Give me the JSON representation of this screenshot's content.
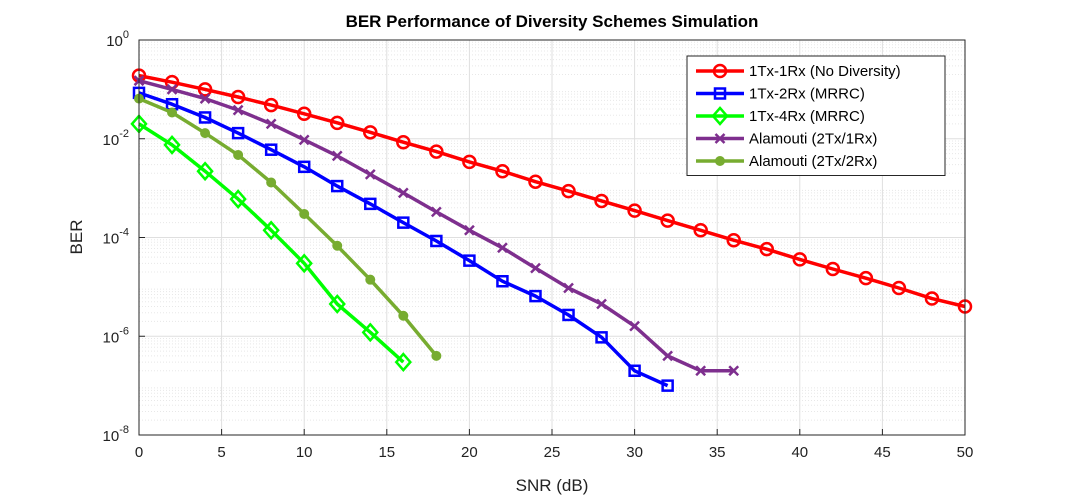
{
  "chart_data": {
    "type": "line",
    "title": "BER Performance of Diversity Schemes Simulation",
    "xlabel": "SNR (dB)",
    "ylabel": "BER",
    "xlim": [
      0,
      50
    ],
    "ylim": [
      1e-08,
      1
    ],
    "yscale": "log",
    "grid": true,
    "minor_grid": true,
    "legend_position": "top-right",
    "x_ticks": [
      0,
      5,
      10,
      15,
      20,
      25,
      30,
      35,
      40,
      45,
      50
    ],
    "y_ticks": [
      -8,
      -6,
      -4,
      -2,
      0
    ],
    "y_tick_base": "10",
    "series": [
      {
        "name": "1Tx-1Rx (No Diversity)",
        "color": "#ff0000",
        "marker": "circle",
        "x": [
          0,
          2,
          4,
          6,
          8,
          10,
          12,
          14,
          16,
          18,
          20,
          22,
          24,
          26,
          28,
          30,
          32,
          34,
          36,
          38,
          40,
          42,
          44,
          46,
          48,
          50
        ],
        "y": [
          0.19,
          0.14,
          0.1,
          0.07,
          0.048,
          0.032,
          0.021,
          0.0135,
          0.0085,
          0.0055,
          0.0034,
          0.0022,
          0.00135,
          0.00087,
          0.00055,
          0.00035,
          0.00022,
          0.00014,
          8.8e-05,
          5.8e-05,
          3.6e-05,
          2.3e-05,
          1.5e-05,
          9.5e-06,
          5.8e-06,
          4e-06
        ]
      },
      {
        "name": "1Tx-2Rx (MRRC)",
        "color": "#0000ff",
        "marker": "square",
        "x": [
          0,
          2,
          4,
          6,
          8,
          10,
          12,
          14,
          16,
          18,
          20,
          22,
          24,
          26,
          28,
          30,
          32
        ],
        "y": [
          0.085,
          0.05,
          0.027,
          0.013,
          0.006,
          0.0027,
          0.0011,
          0.00048,
          0.0002,
          8.5e-05,
          3.4e-05,
          1.3e-05,
          6.5e-06,
          2.7e-06,
          9.5e-07,
          2e-07,
          1e-07
        ]
      },
      {
        "name": "1Tx-4Rx (MRRC)",
        "color": "#00ff00",
        "marker": "diamond",
        "x": [
          0,
          2,
          4,
          6,
          8,
          10,
          12,
          14,
          16
        ],
        "y": [
          0.02,
          0.0075,
          0.0022,
          0.0006,
          0.00014,
          3e-05,
          4.5e-06,
          1.2e-06,
          3e-07
        ]
      },
      {
        "name": "Alamouti (2Tx/1Rx)",
        "color": "#7e2f8e",
        "marker": "x",
        "x": [
          0,
          2,
          4,
          6,
          8,
          10,
          12,
          14,
          16,
          18,
          20,
          22,
          24,
          26,
          28,
          30,
          32,
          34,
          36
        ],
        "y": [
          0.15,
          0.1,
          0.065,
          0.038,
          0.02,
          0.0095,
          0.0045,
          0.0019,
          0.0008,
          0.00033,
          0.00014,
          6.2e-05,
          2.4e-05,
          9.5e-06,
          4.5e-06,
          1.6e-06,
          4e-07,
          2e-07,
          2e-07
        ]
      },
      {
        "name": "Alamouti (2Tx/2Rx)",
        "color": "#77ac30",
        "marker": "dot",
        "x": [
          0,
          2,
          4,
          6,
          8,
          10,
          12,
          14,
          16,
          18
        ],
        "y": [
          0.065,
          0.034,
          0.013,
          0.0047,
          0.0013,
          0.0003,
          6.8e-05,
          1.4e-05,
          2.6e-06,
          4e-07
        ]
      }
    ]
  }
}
